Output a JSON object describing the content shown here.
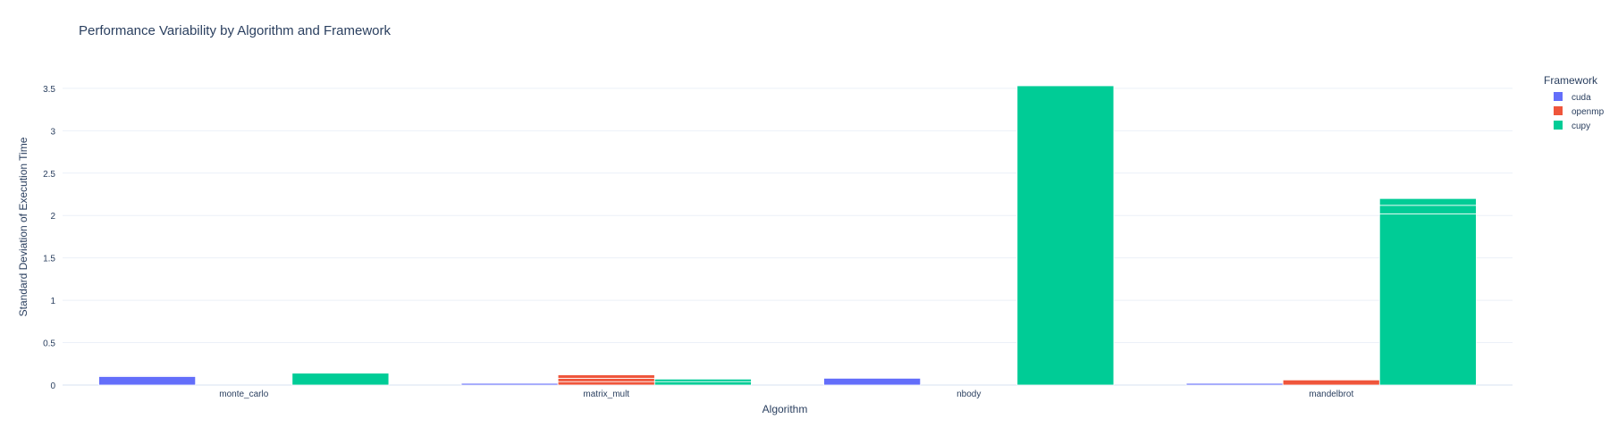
{
  "chart_data": {
    "type": "bar",
    "barmode": "group",
    "title": "Performance Variability by Algorithm and Framework",
    "xlabel": "Algorithm",
    "ylabel": "Standard Deviation of Execution Time",
    "categories": [
      "monte_carlo",
      "matrix_mult",
      "nbody",
      "mandelbrot"
    ],
    "ylim": [
      0,
      3.72
    ],
    "yticks": [
      0,
      0.5,
      1,
      1.5,
      2,
      2.5,
      3,
      3.5
    ],
    "ytick_labels": [
      "0",
      "0.5",
      "1",
      "1.5",
      "2",
      "2.5",
      "3",
      "3.5"
    ],
    "grid": true,
    "legend": {
      "title": "Framework",
      "placement": "top-right"
    },
    "series": [
      {
        "name": "cuda",
        "color": "#636efa",
        "values": [
          0.11,
          0.02,
          0.08,
          0.02
        ],
        "segments": [
          [
            0.1,
            0.01
          ],
          [
            0.02
          ],
          [
            0.08
          ],
          [
            0.02
          ]
        ]
      },
      {
        "name": "openmp",
        "color": "#ef553b",
        "values": [
          0.0,
          0.12,
          0.0,
          0.06
        ],
        "segments": [
          [],
          [
            0.04,
            0.04,
            0.04
          ],
          [],
          [
            0.06
          ]
        ]
      },
      {
        "name": "cupy",
        "color": "#00cc96",
        "values": [
          0.14,
          0.07,
          3.53,
          2.2
        ],
        "segments": [
          [
            0.14
          ],
          [
            0.04,
            0.03
          ],
          [
            3.53
          ],
          [
            2.02,
            0.1,
            0.08
          ]
        ]
      }
    ]
  }
}
